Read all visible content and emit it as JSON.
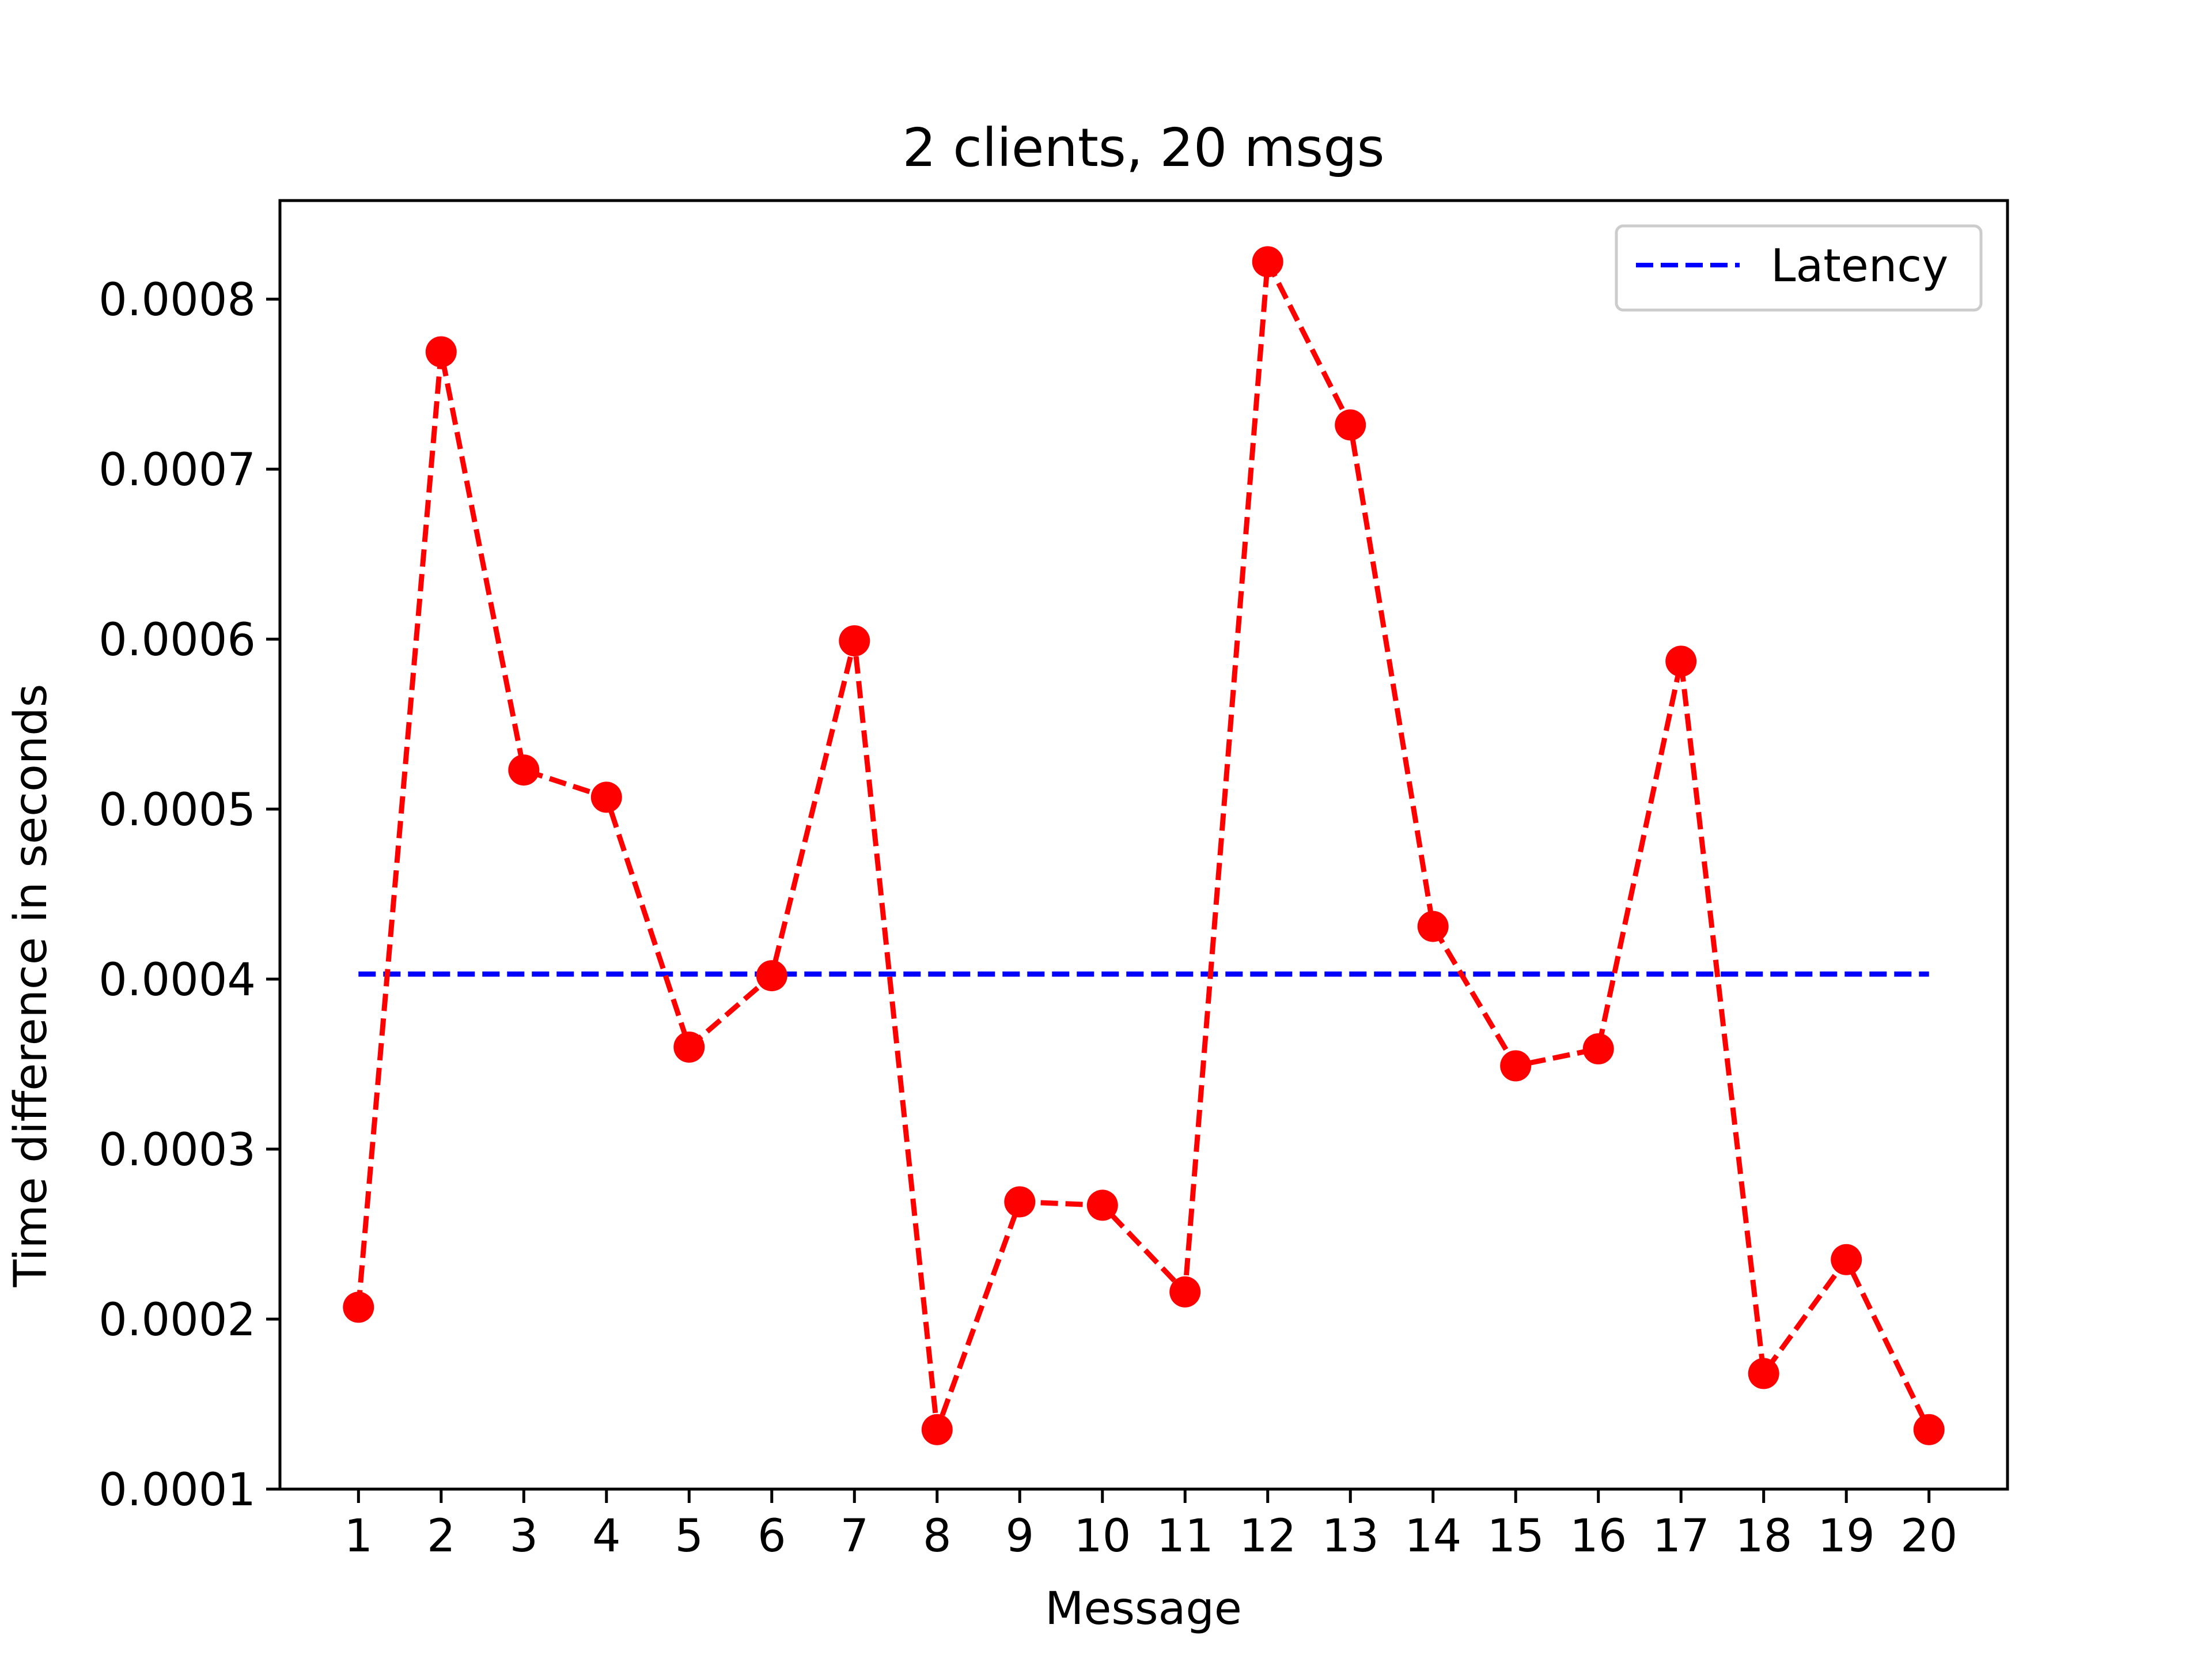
{
  "chart_data": {
    "type": "line",
    "title": "2 clients, 20 msgs",
    "xlabel": "Message",
    "ylabel": "Time difference in seconds",
    "x": [
      1,
      2,
      3,
      4,
      5,
      6,
      7,
      8,
      9,
      10,
      11,
      12,
      13,
      14,
      15,
      16,
      17,
      18,
      19,
      20
    ],
    "x_tick_labels": [
      "1",
      "2",
      "3",
      "4",
      "5",
      "6",
      "7",
      "8",
      "9",
      "10",
      "11",
      "12",
      "13",
      "14",
      "15",
      "16",
      "17",
      "18",
      "19",
      "20"
    ],
    "y_ticks": [
      0.0001,
      0.0002,
      0.0003,
      0.0004,
      0.0005,
      0.0006,
      0.0007,
      0.0008
    ],
    "y_tick_labels": [
      "0.0001",
      "0.0002",
      "0.0003",
      "0.0004",
      "0.0005",
      "0.0006",
      "0.0007",
      "0.0008"
    ],
    "xlim": [
      0.05,
      20.95
    ],
    "ylim": [
      0.0001,
      0.000858
    ],
    "grid": false,
    "legend": {
      "placement": "upper right",
      "entries": [
        "Latency"
      ]
    },
    "series": [
      {
        "color": "#ff0000",
        "line_style": "dashed",
        "marker": "circle",
        "values": [
          0.000207,
          0.000769,
          0.000523,
          0.000507,
          0.00036,
          0.000402,
          0.000599,
          0.000135,
          0.000269,
          0.000267,
          0.000216,
          0.000822,
          0.000726,
          0.000431,
          0.000349,
          0.000359,
          0.000587,
          0.000168,
          0.000235,
          0.000135
        ]
      },
      {
        "name": "Latency",
        "color": "#0000ff",
        "line_style": "dashed",
        "marker": "none",
        "values": [
          0.000403,
          0.000403,
          0.000403,
          0.000403,
          0.000403,
          0.000403,
          0.000403,
          0.000403,
          0.000403,
          0.000403,
          0.000403,
          0.000403,
          0.000403,
          0.000403,
          0.000403,
          0.000403,
          0.000403,
          0.000403,
          0.000403,
          0.000403
        ]
      }
    ]
  }
}
